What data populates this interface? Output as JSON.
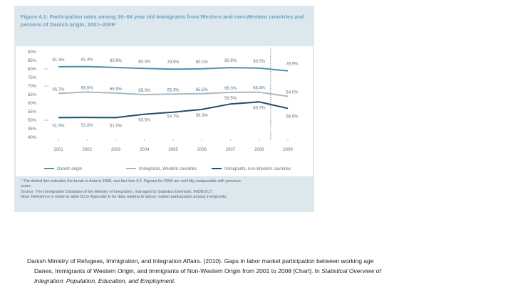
{
  "figure": {
    "title": "Figure 4.1: Participation rates among 16–64 year old immigrants from Western and non-Western countries and persons of Danish origin, 2001–2009¹",
    "notes": [
      "¹ The dotted line indicates the break in data in 2009, see fact box 4.2. Figures for 2009 are not fully comparable with previous",
      "years.",
      "Source: The Immigration Database of the Ministry of Integration, managed by Statistics Denmark, IMDB2017.",
      "Note: Reference is made to table D1 in Appendix D for data relating to labour market participation among immigrants."
    ]
  },
  "caption": {
    "line1": "Danish Ministry of Refugees, Immigration, and Integration Affairs. (2010). Gaps in labor market participation between working age",
    "line2_plain": "Danes, Immigrants of Western Origin, and Immigrants of Non-Western Origin from 2001 to 2008 [Chart]. In ",
    "line2_italic": "Statistical Overview of",
    "line3_italic": "Integration: Population, Education, and Employment."
  },
  "chart_data": {
    "type": "line",
    "categories": [
      "2001",
      "2002",
      "2003",
      "2004",
      "2005",
      "2006",
      "2007",
      "2008",
      "2009"
    ],
    "ylim": [
      40,
      90
    ],
    "yticks": [
      "40%",
      "45%",
      "50%",
      "55%",
      "60%",
      "65%",
      "70%",
      "75%",
      "80%",
      "85%",
      "90%"
    ],
    "series": [
      {
        "name": "Danish origin",
        "color": "#4f8fb0",
        "values": [
          81.3,
          81.4,
          80.9,
          80.3,
          79.9,
          80.1,
          80.8,
          80.5,
          78.9
        ],
        "labels": [
          "81.3%",
          "81.4%",
          "80.9%",
          "80.3%",
          "79.9%",
          "80.1%",
          "80.8%",
          "80.5%",
          "78.9%"
        ]
      },
      {
        "name": "Immigrants, Western countries",
        "color": "#a9b9c4",
        "values": [
          65.7,
          66.5,
          65.9,
          65.0,
          65.3,
          65.5,
          66.3,
          66.4,
          64.0
        ],
        "labels": [
          "65.7%",
          "66.5%",
          "65.9%",
          "65.0%",
          "65.3%",
          "65.5%",
          "66.3%",
          "66.4%",
          "64.0%"
        ]
      },
      {
        "name": "Immigrants, non-Western countries",
        "color": "#1f4f72",
        "values": [
          51.5,
          51.6,
          51.5,
          53.5,
          54.7,
          56.3,
          59.5,
          60.7,
          56.9
        ],
        "labels": [
          "51.5%",
          "51.6%",
          "51.5%",
          "53.5%",
          "54.7%",
          "56.3%",
          "59.5%",
          "60.7%",
          "56.9%"
        ]
      }
    ],
    "break_after": "2008",
    "grid": false,
    "legend_position": "bottom"
  }
}
